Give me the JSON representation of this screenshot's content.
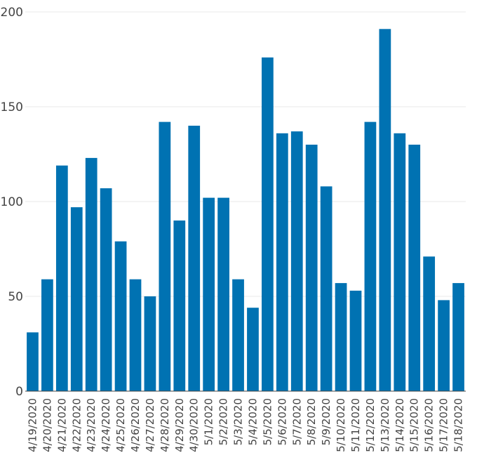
{
  "chart_data": {
    "type": "bar",
    "title": "",
    "xlabel": "",
    "ylabel": "",
    "ylim": [
      0,
      200
    ],
    "yticks": [
      0,
      50,
      100,
      150,
      200
    ],
    "grid": true,
    "bar_color": "#0072B2",
    "categories": [
      "4/19/2020",
      "4/20/2020",
      "4/21/2020",
      "4/22/2020",
      "4/23/2020",
      "4/24/2020",
      "4/25/2020",
      "4/26/2020",
      "4/27/2020",
      "4/28/2020",
      "4/29/2020",
      "4/30/2020",
      "5/1/2020",
      "5/2/2020",
      "5/3/2020",
      "5/4/2020",
      "5/5/2020",
      "5/6/2020",
      "5/7/2020",
      "5/8/2020",
      "5/9/2020",
      "5/10/2020",
      "5/11/2020",
      "5/12/2020",
      "5/13/2020",
      "5/14/2020",
      "5/15/2020",
      "5/16/2020",
      "5/17/2020",
      "5/18/2020"
    ],
    "values": [
      31,
      59,
      119,
      97,
      123,
      107,
      79,
      59,
      50,
      142,
      90,
      140,
      102,
      102,
      59,
      44,
      176,
      136,
      137,
      130,
      108,
      57,
      53,
      142,
      191,
      136,
      130,
      71,
      48,
      57
    ]
  }
}
